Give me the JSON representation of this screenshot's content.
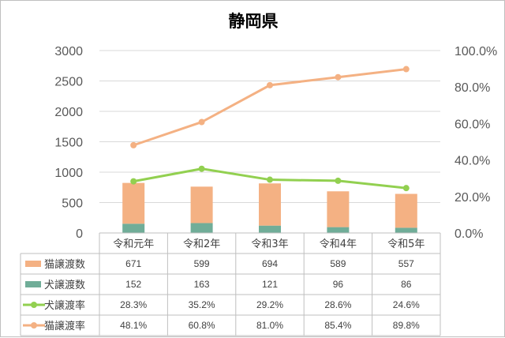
{
  "chart_data": {
    "type": "bar",
    "title": "静岡県",
    "categories": [
      "令和元年",
      "令和2年",
      "令和3年",
      "令和4年",
      "令和5年"
    ],
    "series": [
      {
        "name": "猫譲渡数",
        "type": "bar",
        "axis": "left",
        "values": [
          671,
          599,
          694,
          589,
          557
        ],
        "color": "#f4b183",
        "display": [
          "671",
          "599",
          "694",
          "589",
          "557"
        ]
      },
      {
        "name": "犬譲渡数",
        "type": "bar",
        "axis": "left",
        "values": [
          152,
          163,
          121,
          96,
          86
        ],
        "color": "#70ad98",
        "display": [
          "152",
          "163",
          "121",
          "96",
          "86"
        ]
      },
      {
        "name": "犬譲渡率",
        "type": "line",
        "axis": "right",
        "values": [
          28.3,
          35.2,
          29.2,
          28.6,
          24.6
        ],
        "color": "#92d050",
        "display": [
          "28.3%",
          "35.2%",
          "29.2%",
          "28.6%",
          "24.6%"
        ]
      },
      {
        "name": "猫譲渡率",
        "type": "line",
        "axis": "right",
        "values": [
          48.1,
          60.8,
          81.0,
          85.4,
          89.8
        ],
        "color": "#f4b183",
        "display": [
          "48.1%",
          "60.8%",
          "81.0%",
          "85.4%",
          "89.8%"
        ]
      }
    ],
    "stacked": true,
    "ylim": [
      0,
      3000
    ],
    "yticks": [
      "0",
      "500",
      "1000",
      "1500",
      "2000",
      "2500",
      "3000"
    ],
    "y2lim": [
      0,
      100
    ],
    "y2ticks": [
      "0.0%",
      "20.0%",
      "40.0%",
      "60.0%",
      "80.0%",
      "100.0%"
    ],
    "grid": true,
    "legend": "data-table"
  }
}
